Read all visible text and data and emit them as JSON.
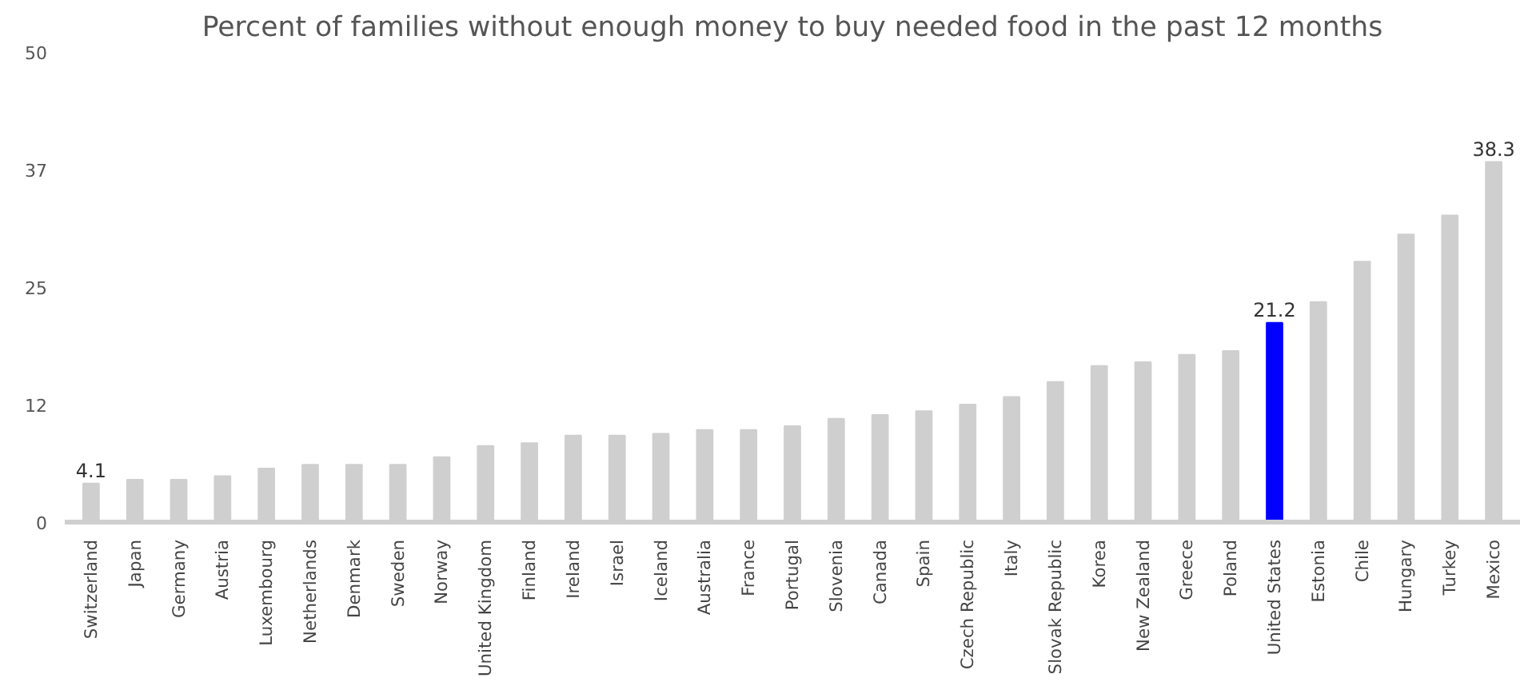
{
  "chart_data": {
    "type": "bar",
    "title": "Percent of families without enough money to buy needed food in the past 12 months",
    "categories": [
      "Switzerland",
      "Japan",
      "Germany",
      "Austria",
      "Luxembourg",
      "Netherlands",
      "Denmark",
      "Sweden",
      "Norway",
      "United Kingdom",
      "Finland",
      "Ireland",
      "Israel",
      "Iceland",
      "Australia",
      "France",
      "Portugal",
      "Slovenia",
      "Canada",
      "Spain",
      "Czech Republic",
      "Italy",
      "Slovak Republic",
      "Korea",
      "New Zealand",
      "Greece",
      "Poland",
      "United States",
      "Estonia",
      "Chile",
      "Hungary",
      "Turkey",
      "Mexico"
    ],
    "values": [
      4.1,
      4.5,
      4.5,
      4.9,
      5.7,
      6.1,
      6.1,
      6.1,
      6.9,
      8.1,
      8.4,
      9.2,
      9.2,
      9.4,
      9.8,
      9.8,
      10.2,
      11.0,
      11.4,
      11.8,
      12.5,
      13.3,
      14.9,
      16.6,
      17.0,
      17.8,
      18.2,
      21.2,
      23.4,
      27.7,
      30.6,
      32.6,
      38.3
    ],
    "colors": [
      "#d0cfcf",
      "#d0cfcf",
      "#d0cfcf",
      "#d0cfcf",
      "#d0cfcf",
      "#d0cfcf",
      "#d0cfcf",
      "#d0cfcf",
      "#d0cfcf",
      "#d0cfcf",
      "#d0cfcf",
      "#d0cfcf",
      "#d0cfcf",
      "#d0cfcf",
      "#d0cfcf",
      "#d0cfcf",
      "#d0cfcf",
      "#d0cfcf",
      "#d0cfcf",
      "#d0cfcf",
      "#d0cfcf",
      "#d0cfcf",
      "#d0cfcf",
      "#d0cfcf",
      "#d0cfcf",
      "#d0cfcf",
      "#d0cfcf",
      "#0000ff",
      "#d0cfcf",
      "#d0cfcf",
      "#d0cfcf",
      "#d0cfcf",
      "#d0cfcf"
    ],
    "value_labels": [
      "4.1",
      null,
      null,
      null,
      null,
      null,
      null,
      null,
      null,
      null,
      null,
      null,
      null,
      null,
      null,
      null,
      null,
      null,
      null,
      null,
      null,
      null,
      null,
      null,
      null,
      null,
      null,
      "21.2",
      null,
      null,
      null,
      null,
      "38.3"
    ],
    "ylim": [
      0,
      50
    ],
    "yticks": [
      0,
      {
        "value": 12.5,
        "label": "12"
      },
      25,
      {
        "value": 37.5,
        "label": "37"
      },
      50
    ],
    "grid": false
  }
}
